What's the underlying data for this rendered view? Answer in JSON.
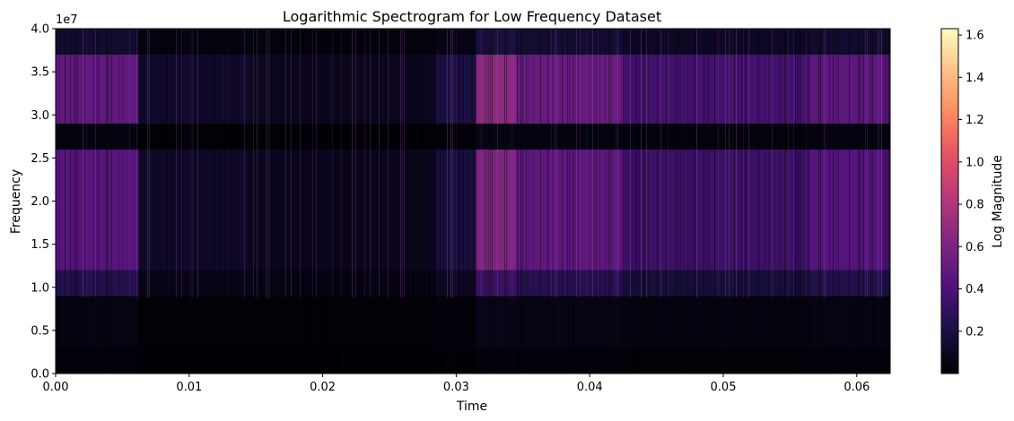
{
  "chart_data": {
    "type": "heatmap",
    "title": "Logarithmic Spectrogram for Low Frequency Dataset",
    "xlabel": "Time",
    "ylabel": "Frequency",
    "y_offset_label": "1e7",
    "colormap": "magma",
    "colorbar": {
      "label": "Log Magnitude",
      "range": [
        0.0,
        1.63
      ],
      "ticks": [
        0.2,
        0.4,
        0.6,
        0.8,
        1.0,
        1.2,
        1.4,
        1.6
      ],
      "tick_labels": [
        "0.2",
        "0.4",
        "0.6",
        "0.8",
        "1.0",
        "1.2",
        "1.4",
        "1.6"
      ]
    },
    "xlim": [
      0.0,
      0.0625
    ],
    "ylim": [
      0.0,
      4.0
    ],
    "x_ticks": [
      0.0,
      0.01,
      0.02,
      0.03,
      0.04,
      0.05,
      0.06
    ],
    "x_tick_labels": [
      "0.00",
      "0.01",
      "0.02",
      "0.03",
      "0.04",
      "0.05",
      "0.06"
    ],
    "y_ticks": [
      0.0,
      0.5,
      1.0,
      1.5,
      2.0,
      2.5,
      3.0,
      3.5,
      4.0
    ],
    "y_tick_labels": [
      "0.0",
      "0.5",
      "1.0",
      "1.5",
      "2.0",
      "2.5",
      "3.0",
      "3.5",
      "4.0"
    ],
    "time_segments": [
      {
        "t_start": 0.0,
        "t_end": 0.0062,
        "activity": 0.8
      },
      {
        "t_start": 0.0062,
        "t_end": 0.0145,
        "activity": 0.22
      },
      {
        "t_start": 0.0145,
        "t_end": 0.0285,
        "activity": 0.15
      },
      {
        "t_start": 0.0285,
        "t_end": 0.0315,
        "activity": 0.35
      },
      {
        "t_start": 0.0315,
        "t_end": 0.0345,
        "activity": 1.1
      },
      {
        "t_start": 0.0345,
        "t_end": 0.0425,
        "activity": 0.85
      },
      {
        "t_start": 0.0425,
        "t_end": 0.0565,
        "activity": 0.6
      },
      {
        "t_start": 0.0565,
        "t_end": 0.0625,
        "activity": 0.78
      }
    ],
    "frequency_bands": [
      {
        "f_low": 0.0,
        "f_high": 0.3,
        "level": 0.02
      },
      {
        "f_low": 0.3,
        "f_high": 0.9,
        "level": 0.06
      },
      {
        "f_low": 0.9,
        "f_high": 1.2,
        "level": 0.3
      },
      {
        "f_low": 1.2,
        "f_high": 2.6,
        "level": 0.55
      },
      {
        "f_low": 2.6,
        "f_high": 2.9,
        "level": 0.05
      },
      {
        "f_low": 2.9,
        "f_high": 3.7,
        "level": 0.6
      },
      {
        "f_low": 3.7,
        "f_high": 4.0,
        "level": 0.18
      }
    ]
  }
}
